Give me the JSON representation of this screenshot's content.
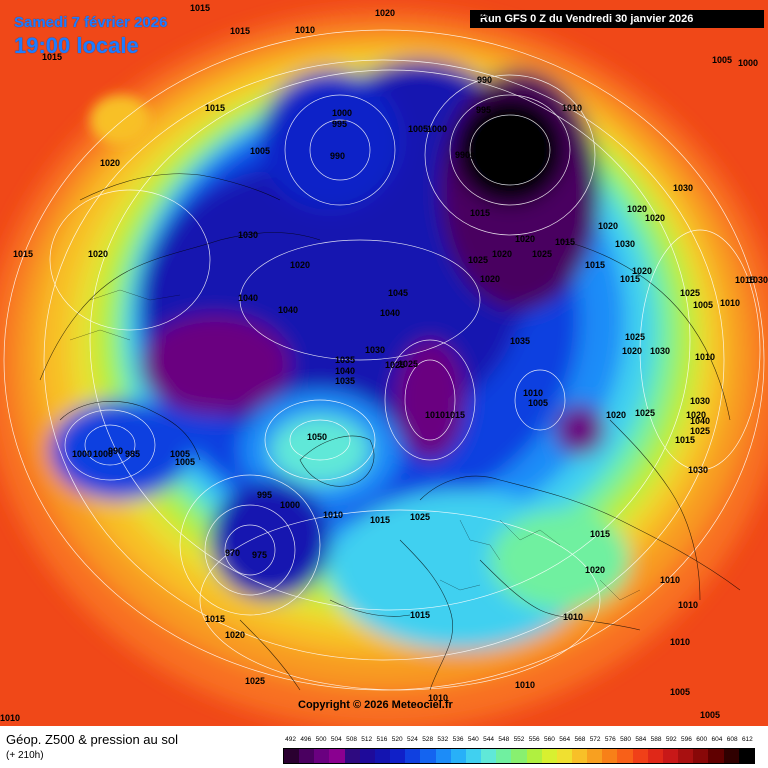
{
  "header": {
    "date": "Samedi 7 février 2026",
    "time": "19:00 locale",
    "run": "Run GFS 0 Z du Vendredi 30 janvier 2026"
  },
  "copyright": "Copyright © 2026 Meteociel.fr",
  "legend": {
    "title": "Géop. Z500 & pression au sol",
    "subtitle": "(+ 210h)",
    "scale_values": [
      "492",
      "496",
      "500",
      "504",
      "508",
      "512",
      "516",
      "520",
      "524",
      "528",
      "532",
      "536",
      "540",
      "544",
      "548",
      "552",
      "556",
      "560",
      "564",
      "568",
      "572",
      "576",
      "580",
      "584",
      "588",
      "592",
      "596",
      "600",
      "604",
      "608",
      "612"
    ],
    "scale_colors": [
      "#2a0030",
      "#4a0060",
      "#6a0080",
      "#8a0090",
      "#2e0a80",
      "#1e0a9a",
      "#1414b0",
      "#1020c8",
      "#1040e0",
      "#1464f0",
      "#1c8cf8",
      "#28b0f8",
      "#40d0f0",
      "#60e8d8",
      "#70f0a0",
      "#88f070",
      "#b0f040",
      "#d8f030",
      "#f0e030",
      "#f8c028",
      "#f8a020",
      "#f88018",
      "#f86018",
      "#f04018",
      "#e02818",
      "#c81818",
      "#a81010",
      "#880808",
      "#600000",
      "#300000",
      "#000000"
    ]
  },
  "pressure_labels": [
    "1015",
    "1015",
    "1020",
    "1010",
    "1020",
    "1015",
    "1020",
    "1005",
    "1015",
    "1015",
    "1020",
    "1030",
    "1000",
    "995",
    "990",
    "1005",
    "1000",
    "990",
    "990",
    "995",
    "1010",
    "980",
    "985",
    "970",
    "975",
    "1005",
    "1000",
    "1030",
    "1020",
    "1020",
    "1015",
    "1020",
    "1015",
    "1020",
    "1025",
    "1020",
    "1025",
    "1020",
    "1030",
    "1020",
    "1040",
    "1045",
    "1040",
    "1040",
    "1030",
    "1035",
    "1040",
    "1035",
    "1025",
    "1035",
    "1025",
    "1010",
    "1005",
    "1010",
    "1015",
    "1015",
    "1020",
    "1025",
    "1025",
    "1020",
    "1015",
    "1050",
    "995",
    "1000",
    "1005",
    "1005",
    "1000",
    "990",
    "985",
    "975",
    "970",
    "1010",
    "1015",
    "1025",
    "1020",
    "1025",
    "1030",
    "1040",
    "1030",
    "1020",
    "1015",
    "1010",
    "1010",
    "1005",
    "1015",
    "1020",
    "1025",
    "1010",
    "1005",
    "1015",
    "1010",
    "1010",
    "1010",
    "1010",
    "1010",
    "1020",
    "1025",
    "1015",
    "1010",
    "1005",
    "1000",
    "1030",
    "1015",
    "1030"
  ]
}
